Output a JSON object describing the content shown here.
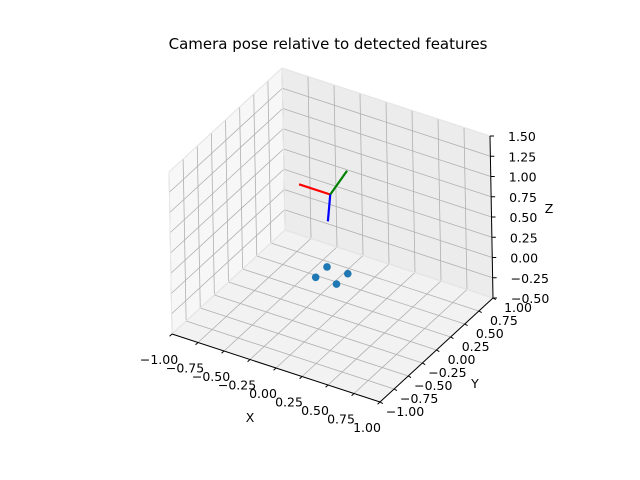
{
  "chart_data": {
    "type": "scatter",
    "projection": "3d",
    "title": "Camera pose relative to detected features",
    "xlabel": "X",
    "ylabel": "Y",
    "zlabel": "Z",
    "xlim": [
      -1.0,
      1.0
    ],
    "ylim": [
      -1.0,
      1.0
    ],
    "zlim": [
      -0.5,
      1.5
    ],
    "xticks": [
      "−1.00",
      "−0.75",
      "−0.50",
      "−0.25",
      "0.00",
      "0.25",
      "0.50",
      "0.75",
      "1.00"
    ],
    "yticks": [
      "−1.00",
      "−0.75",
      "−0.50",
      "−0.25",
      "0.00",
      "0.25",
      "0.50",
      "0.75",
      "1.00"
    ],
    "zticks": [
      "−0.50",
      "−0.25",
      "0.00",
      "0.25",
      "0.50",
      "0.75",
      "1.00",
      "1.25",
      "1.50"
    ],
    "grid": true,
    "features": {
      "color": "#1f77b4",
      "points": [
        {
          "x": -0.1,
          "y": -0.1,
          "z": 0.0
        },
        {
          "x": 0.1,
          "y": -0.1,
          "z": 0.0
        },
        {
          "x": 0.1,
          "y": 0.1,
          "z": 0.0
        },
        {
          "x": -0.1,
          "y": 0.1,
          "z": 0.0
        }
      ]
    },
    "camera": {
      "origin": {
        "x": 0.0,
        "y": 0.0,
        "z": 1.0
      },
      "axes": [
        {
          "color": "#ff0000",
          "end": {
            "x": -0.3,
            "y": 0.0,
            "z": 1.0
          }
        },
        {
          "color": "#008000",
          "end": {
            "x": 0.0,
            "y": 0.3,
            "z": 1.1
          }
        },
        {
          "color": "#0000ff",
          "end": {
            "x": 0.0,
            "y": -0.05,
            "z": 0.7
          }
        }
      ]
    }
  }
}
